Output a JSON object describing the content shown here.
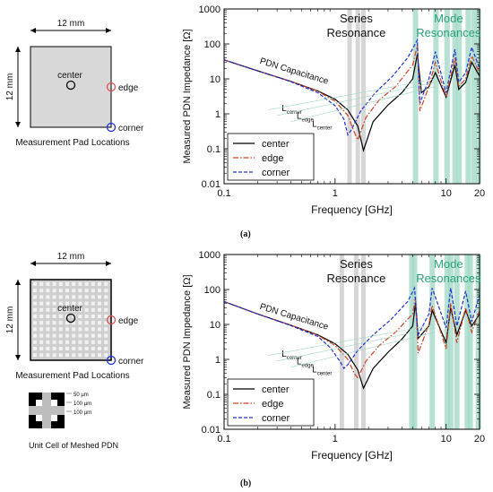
{
  "figure": {
    "panel_a_label": "(a)",
    "panel_b_label": "(b)"
  },
  "panels": [
    {
      "id": "a",
      "pad_diagram": {
        "width_label": "12 mm",
        "height_label": "12 mm",
        "pads": [
          "center",
          "edge",
          "corner"
        ],
        "caption": "Measurement Pad Locations",
        "meshed": false,
        "pad_colors": {
          "center": "#000000",
          "edge": "#e05050",
          "corner": "#2030e0"
        }
      }
    },
    {
      "id": "b",
      "pad_diagram": {
        "width_label": "12 mm",
        "height_label": "12 mm",
        "pads": [
          "center",
          "edge",
          "corner"
        ],
        "caption": "Measurement Pad Locations",
        "meshed": true,
        "pad_colors": {
          "center": "#000000",
          "edge": "#e05050",
          "corner": "#2030e0"
        }
      },
      "unit_cell": {
        "caption": "Unit Cell of Meshed PDN",
        "dims": [
          "50 µm",
          "100 µm",
          "100 µm"
        ]
      }
    }
  ],
  "chart_data": [
    {
      "type": "line",
      "panel": "a",
      "xlabel": "Frequency  [GHz]",
      "ylabel": "Measured PDN Impedance [Ω]",
      "xscale": "log",
      "yscale": "log",
      "xlim": [
        0.1,
        20
      ],
      "ylim": [
        0.01,
        1000
      ],
      "xticks": [
        "0.1",
        "1",
        "10",
        "20"
      ],
      "yticks": [
        "0.01",
        "0.1",
        "1",
        "10",
        "100",
        "1000"
      ],
      "annotations": {
        "series_resonance": "Series\nResonance",
        "mode_resonances": "Mode\nResonances",
        "pdn_capacitance": "PDN Capacitance",
        "l_corner": "L",
        "l_corner_sub": "corner",
        "l_edge": "L",
        "l_edge_sub": "edge",
        "l_center": "L",
        "l_center_sub": "center"
      },
      "legend": {
        "position": "bottom-left",
        "entries": [
          "center",
          "edge",
          "corner"
        ]
      },
      "series": [
        {
          "name": "center",
          "color": "#000000",
          "dash": "solid",
          "x": [
            0.1,
            0.2,
            0.4,
            0.7,
            1.0,
            1.3,
            1.6,
            1.8,
            2.2,
            3,
            4,
            5,
            5.5,
            6,
            7,
            8,
            10,
            12,
            13,
            15,
            17,
            20
          ],
          "y": [
            35,
            17,
            8.5,
            4.5,
            2.6,
            1.3,
            0.45,
            0.09,
            0.6,
            1.8,
            4,
            10,
            50,
            4,
            6,
            15,
            3,
            25,
            5,
            8,
            30,
            12
          ]
        },
        {
          "name": "edge",
          "color": "#d04020",
          "dash": "dashdot",
          "x": [
            0.1,
            0.2,
            0.4,
            0.7,
            1.0,
            1.3,
            1.5,
            1.6,
            1.9,
            2.5,
            3.5,
            5,
            5.5,
            5.8,
            7,
            8,
            10,
            12,
            13,
            15,
            17,
            20
          ],
          "y": [
            35,
            17,
            8.5,
            4.4,
            2.3,
            0.9,
            0.28,
            0.18,
            0.8,
            2.5,
            6,
            25,
            90,
            1.2,
            6,
            30,
            3,
            40,
            6,
            10,
            45,
            15
          ]
        },
        {
          "name": "corner",
          "color": "#2030d0",
          "dash": "dashed",
          "x": [
            0.1,
            0.2,
            0.4,
            0.7,
            1.0,
            1.2,
            1.3,
            1.4,
            1.7,
            2.3,
            3.3,
            4.5,
            5.5,
            5.8,
            7,
            8,
            10,
            12,
            13,
            15,
            17,
            20
          ],
          "y": [
            35,
            17,
            8.3,
            4.0,
            1.7,
            0.7,
            0.25,
            0.35,
            1.2,
            4,
            12,
            40,
            130,
            2,
            10,
            60,
            4,
            70,
            8,
            15,
            80,
            20
          ]
        }
      ],
      "resonance_bands_gray": [
        1.35,
        1.6,
        1.8
      ],
      "resonance_bands_green": [
        5.3,
        8.1,
        10.2,
        12.0,
        13.1,
        15.8,
        17.8,
        19.5
      ]
    },
    {
      "type": "line",
      "panel": "b",
      "xlabel": "Frequency  [GHz]",
      "ylabel": "Measured PDN Impedance [Ω]",
      "xscale": "log",
      "yscale": "log",
      "xlim": [
        0.1,
        20
      ],
      "ylim": [
        0.01,
        1000
      ],
      "xticks": [
        "0.1",
        "1",
        "10",
        "20"
      ],
      "yticks": [
        "0.01",
        "0.1",
        "1",
        "10",
        "100",
        "1000"
      ],
      "annotations": {
        "series_resonance": "Series\nResonance",
        "mode_resonances": "Mode\nResonances",
        "pdn_capacitance": "PDN Capacitance",
        "l_corner": "L",
        "l_corner_sub": "corner",
        "l_edge": "L",
        "l_edge_sub": "edge",
        "l_center": "L",
        "l_center_sub": "center"
      },
      "legend": {
        "position": "bottom-left",
        "entries": [
          "center",
          "edge",
          "corner"
        ]
      },
      "series": [
        {
          "name": "center",
          "color": "#000000",
          "dash": "solid",
          "x": [
            0.1,
            0.2,
            0.4,
            0.7,
            1.0,
            1.3,
            1.6,
            1.8,
            2.2,
            3,
            4,
            5,
            5.3,
            5.6,
            7,
            7.5,
            10,
            11,
            12.5,
            15,
            17,
            20
          ],
          "y": [
            45,
            20,
            9.5,
            5,
            2.8,
            1.4,
            0.5,
            0.15,
            0.55,
            1.6,
            3.8,
            9,
            40,
            4,
            9,
            25,
            3,
            30,
            5,
            25,
            9,
            20
          ]
        },
        {
          "name": "edge",
          "color": "#d04020",
          "dash": "dashdot",
          "x": [
            0.1,
            0.2,
            0.4,
            0.7,
            1.0,
            1.3,
            1.5,
            1.6,
            1.9,
            2.5,
            3.5,
            5,
            5.3,
            5.6,
            7,
            7.5,
            10,
            11,
            12.5,
            15,
            17,
            20
          ],
          "y": [
            45,
            20,
            9.5,
            4.9,
            2.5,
            1.0,
            0.38,
            0.3,
            0.9,
            2.5,
            6,
            20,
            60,
            1.5,
            10,
            35,
            2,
            40,
            3,
            30,
            6,
            25
          ]
        },
        {
          "name": "corner",
          "color": "#2030d0",
          "dash": "dashed",
          "x": [
            0.1,
            0.2,
            0.4,
            0.7,
            0.9,
            1.1,
            1.2,
            1.3,
            1.6,
            2.2,
            3.2,
            4.5,
            5.2,
            5.6,
            7,
            7.5,
            10,
            11,
            12.5,
            15,
            17,
            20
          ],
          "y": [
            45,
            20,
            9.2,
            4.5,
            2.2,
            0.9,
            0.55,
            0.7,
            1.8,
            5,
            14,
            45,
            110,
            5,
            20,
            110,
            8,
            110,
            9,
            90,
            12,
            70
          ]
        }
      ],
      "resonance_bands_gray": [
        1.15,
        1.55,
        1.8
      ],
      "resonance_bands_green": [
        4.9,
        5.2,
        7.5,
        10.2,
        11.0,
        12.5,
        15.5,
        16.5,
        19.5
      ]
    }
  ]
}
